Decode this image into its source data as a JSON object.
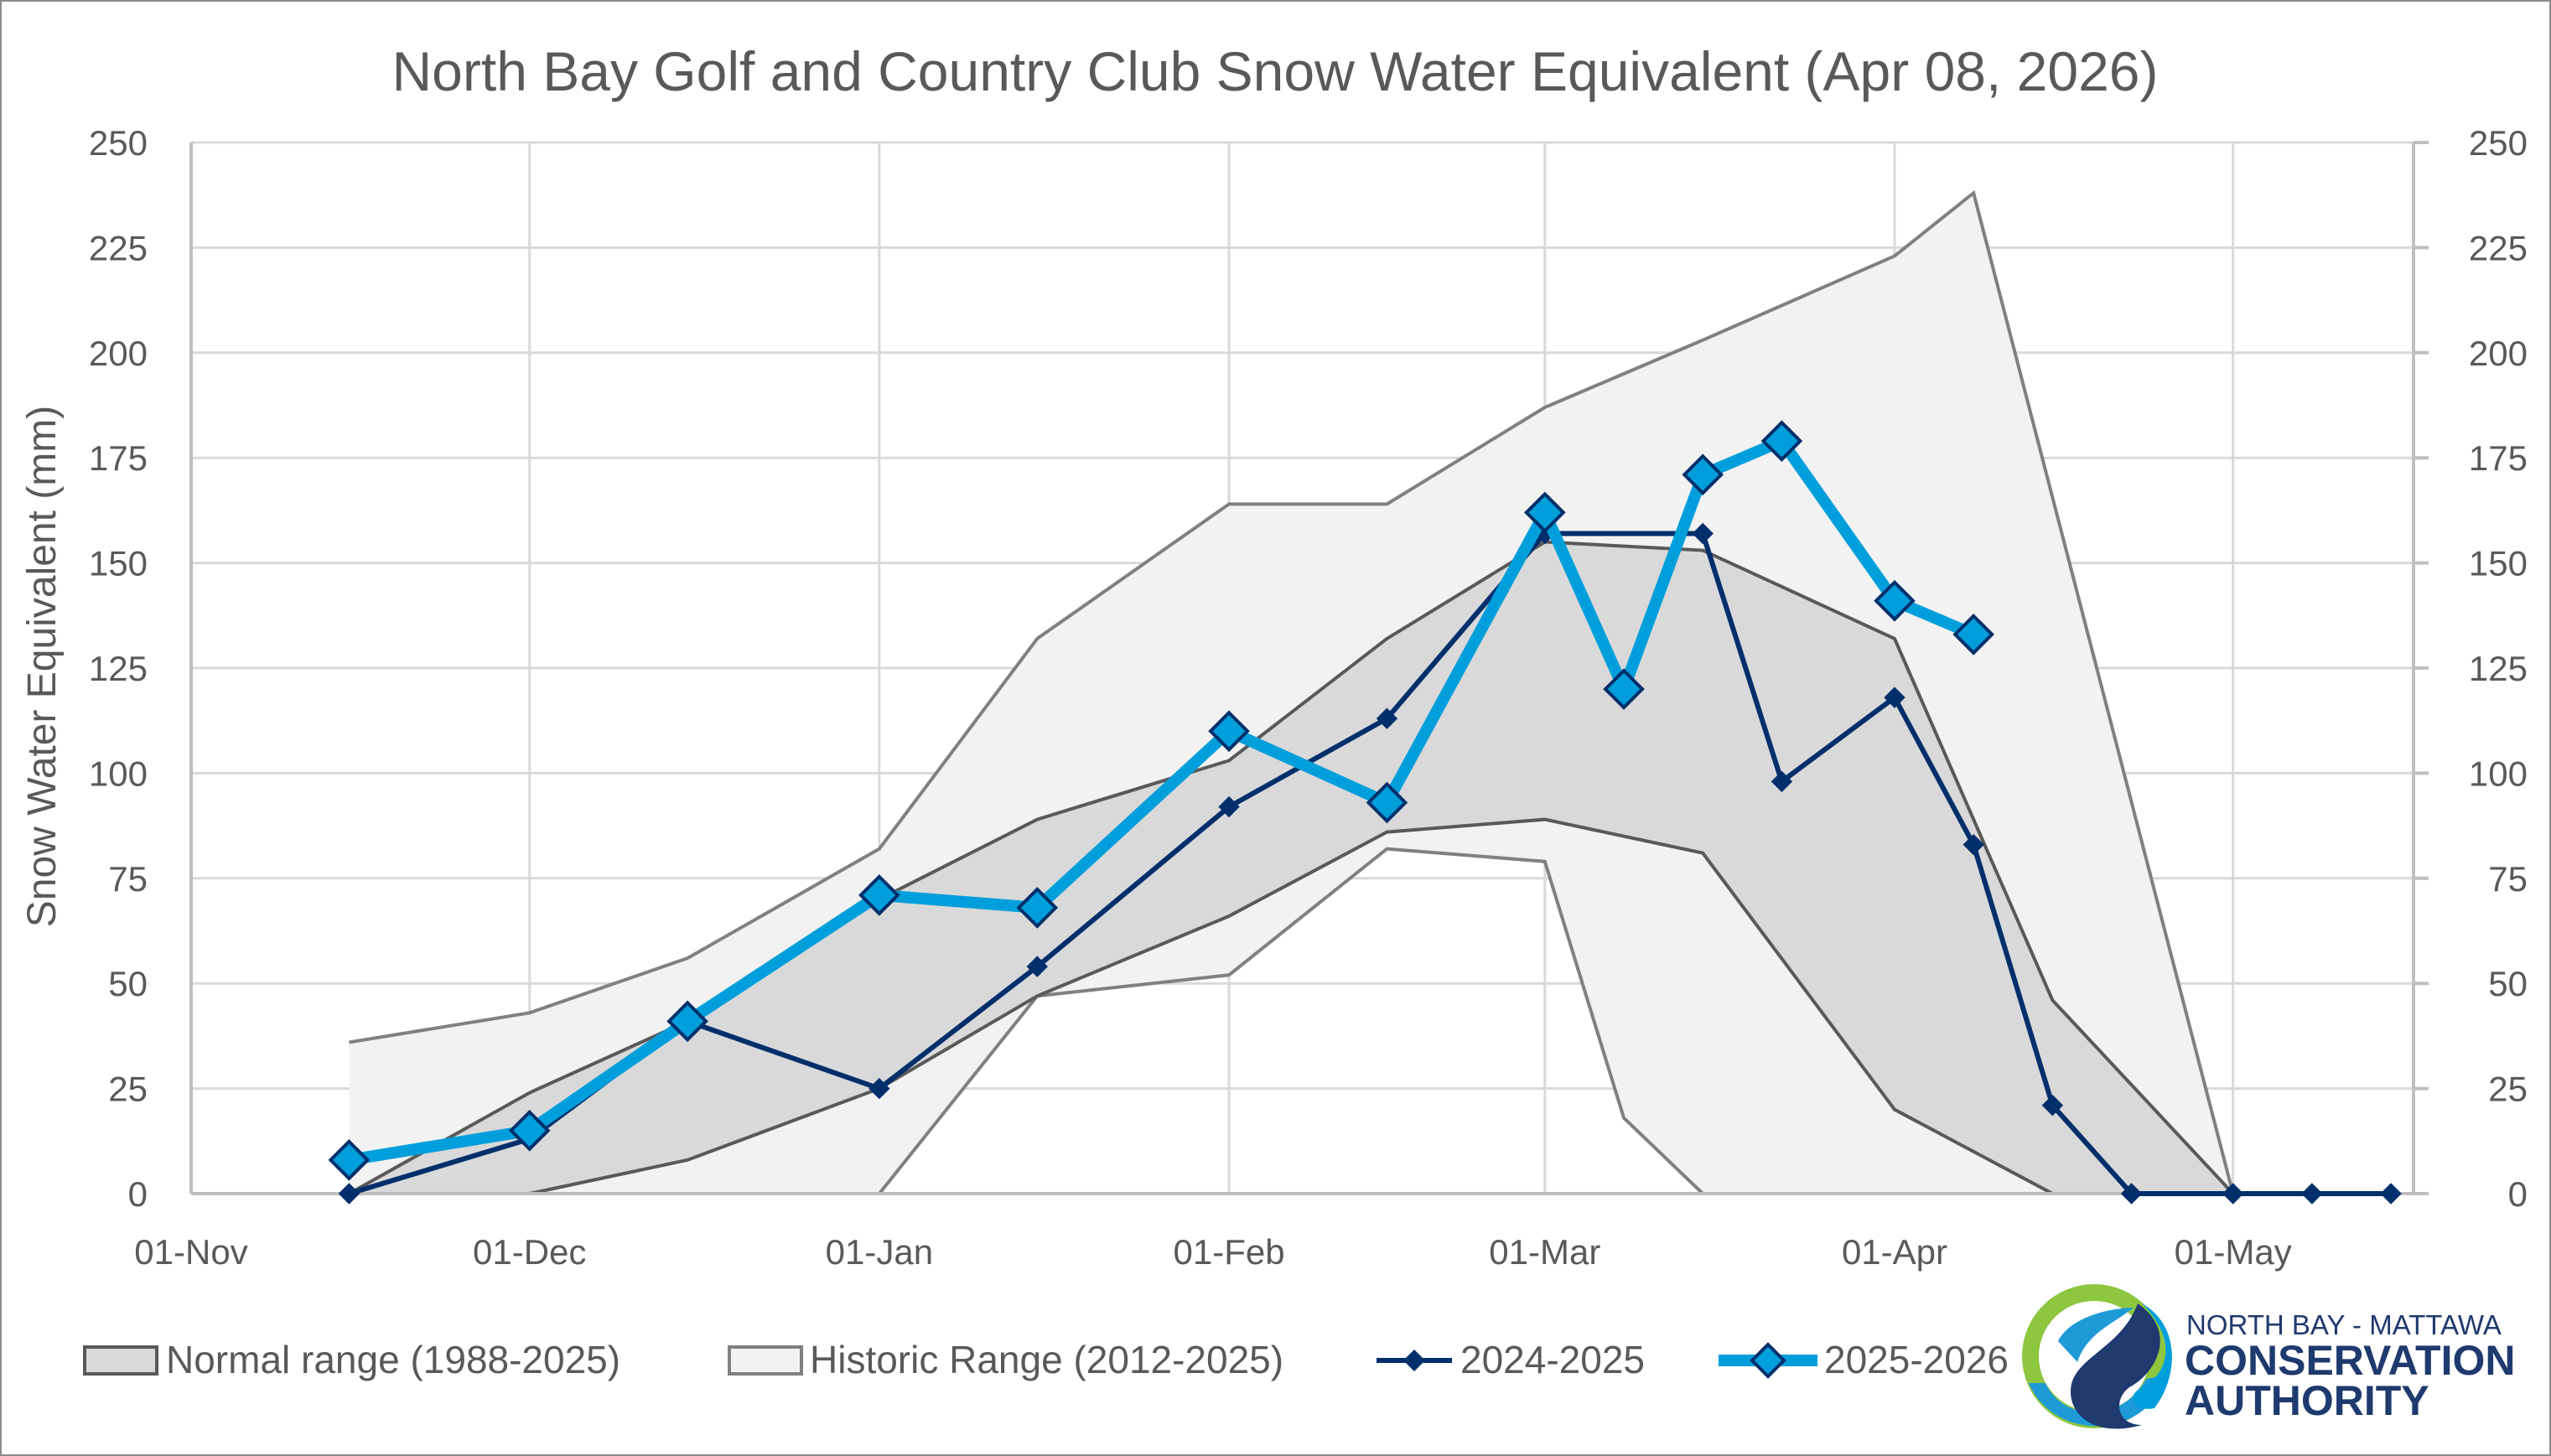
{
  "chart_data": {
    "type": "line",
    "title": "North Bay Golf and Country Club Snow Water Equivalent (Apr 08, 2026)",
    "ylabel": "Snow Water Equivalent (mm)",
    "xlabel": "",
    "ylim": [
      0,
      250
    ],
    "y_ticks": [
      0,
      25,
      50,
      75,
      100,
      125,
      150,
      175,
      200,
      225,
      250
    ],
    "y_tick_labels": [
      "0",
      "25",
      "50",
      "75",
      "100",
      "125",
      "150",
      "175",
      "200",
      "225",
      "250"
    ],
    "secondary_y_axis": true,
    "x_axis": {
      "unit": "days since 01-Nov",
      "range": [
        0,
        197
      ],
      "ticks": [
        0,
        30,
        61,
        92,
        120,
        151,
        181
      ],
      "tick_labels": [
        "01-Nov",
        "01-Dec",
        "01-Jan",
        "01-Feb",
        "01-Mar",
        "01-Apr",
        "01-May"
      ]
    },
    "grid": true,
    "legend_position": "bottom",
    "dates": [
      "15-Nov",
      "01-Dec",
      "15-Dec",
      "01-Jan",
      "15-Jan",
      "01-Feb",
      "15-Feb",
      "01-Mar",
      "08-Mar",
      "15-Mar",
      "22-Mar",
      "01-Apr",
      "08-Apr",
      "15-Apr",
      "22-Apr",
      "01-May",
      "08-May",
      "15-May"
    ],
    "x": [
      14,
      30,
      44,
      61,
      75,
      92,
      106,
      120,
      127,
      134,
      141,
      151,
      158,
      165,
      172,
      181,
      188,
      195
    ],
    "ranges": [
      {
        "name": "Normal range (1988-2025)",
        "fill": "#d9d9d9",
        "stroke": "#595959",
        "x": [
          14,
          30,
          44,
          61,
          75,
          92,
          106,
          120,
          134,
          151,
          165,
          181
        ],
        "upper": [
          0,
          24,
          41,
          70,
          89,
          103,
          132,
          155,
          153,
          132,
          46,
          0
        ],
        "lower": [
          0,
          0,
          8,
          25,
          47,
          66,
          86,
          89,
          81,
          20,
          0,
          0
        ]
      },
      {
        "name": "Historic Range (2012-2025)",
        "fill": "#f2f2f2",
        "stroke": "#808080",
        "x": [
          14,
          30,
          44,
          61,
          75,
          92,
          106,
          120,
          127,
          134,
          151,
          158,
          181
        ],
        "upper": [
          36,
          43,
          56,
          82,
          132,
          164,
          164,
          187,
          195,
          203,
          223,
          238,
          0
        ],
        "lower": [
          0,
          0,
          0,
          0,
          47,
          52,
          82,
          79,
          18,
          0,
          0,
          0,
          0
        ]
      }
    ],
    "series": [
      {
        "name": "2024-2025",
        "color": "#002f6c",
        "marker": "diamond-small",
        "x": [
          14,
          30,
          44,
          61,
          75,
          92,
          106,
          120,
          134,
          141,
          151,
          158,
          165,
          172,
          181,
          188,
          195
        ],
        "values": [
          0,
          13,
          41,
          25,
          54,
          92,
          113,
          157,
          157,
          98,
          118,
          83,
          21,
          0,
          0,
          0,
          0
        ]
      },
      {
        "name": "2025-2026",
        "color": "#009fdb",
        "marker": "diamond-large",
        "x": [
          14,
          30,
          44,
          61,
          75,
          92,
          106,
          120,
          127,
          134,
          141,
          151,
          158
        ],
        "values": [
          8,
          15,
          41,
          71,
          68,
          110,
          93,
          162,
          120,
          171,
          179,
          141,
          133
        ]
      }
    ]
  },
  "legend": {
    "items": [
      {
        "label": "Normal range (1988-2025)"
      },
      {
        "label": "Historic Range (2012-2025)"
      },
      {
        "label": "2024-2025"
      },
      {
        "label": "2025-2026"
      }
    ]
  },
  "logo": {
    "line1": "NORTH BAY - MATTAWA",
    "line2": "CONSERVATION",
    "line3": "AUTHORITY",
    "colors": {
      "green": "#8dc63f",
      "light_blue": "#009fdb",
      "mid_blue": "#1e9bd7",
      "navy": "#1f3a6e"
    }
  }
}
